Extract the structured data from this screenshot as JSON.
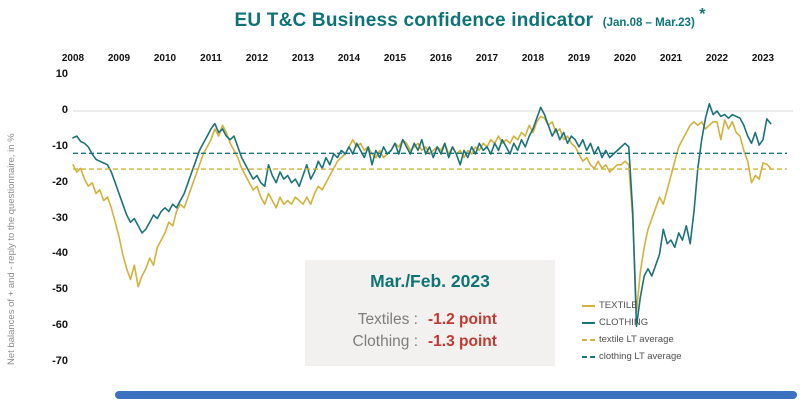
{
  "title": {
    "main": "EU T&C Business confidence indicator",
    "range": "(Jan.08 – Mar.23)",
    "asterisk": "*"
  },
  "y_axis": {
    "title": "Net balances of + and - reply to the questionnaire, in %"
  },
  "annotation": {
    "title": "Mar./Feb. 2023",
    "rows": [
      {
        "label": "Textiles :",
        "value": "-1.2  point"
      },
      {
        "label": "Clothing :",
        "value": "-1.3  point"
      }
    ]
  },
  "legend": [
    {
      "label": "TEXTILE",
      "style": "solid",
      "color": "#d2b13c"
    },
    {
      "label": "CLOTHING",
      "style": "solid",
      "color": "#1b727b"
    },
    {
      "label": "textile LT average",
      "style": "dashed",
      "color": "#d2b13c"
    },
    {
      "label": "clothing LT average",
      "style": "dashed",
      "color": "#1b727b"
    }
  ],
  "colors": {
    "title_teal": "#0d7377",
    "textile": "#d2b13c",
    "clothing": "#1b727b",
    "annotation_red": "#c0392f",
    "annotation_gray": "#7d7d7d",
    "zero_line": "#d8d8d8",
    "scrollbar_blue": "#3c70c0"
  },
  "chart_data": {
    "type": "line",
    "title": "EU T&C Business confidence indicator (Jan.08 – Mar.23)",
    "ylabel": "Net balances of + and - reply to the questionnaire, in %",
    "x_labels": [
      "2008",
      "2009",
      "2010",
      "2011",
      "2012",
      "2013",
      "2014",
      "2015",
      "2016",
      "2017",
      "2018",
      "2019",
      "2020",
      "2021",
      "2022",
      "2023"
    ],
    "y_ticks": [
      10,
      0,
      -10,
      -20,
      -30,
      -40,
      -50,
      -60,
      -70
    ],
    "ylim": [
      -70,
      10
    ],
    "x_start_year": 2008,
    "frequency": "monthly",
    "grid": false,
    "legend_position": "right-bottom",
    "series": [
      {
        "name": "TEXTILE",
        "color": "#d2b13c",
        "style": "solid",
        "values": [
          -15,
          -17,
          -16,
          -19,
          -21,
          -20,
          -23,
          -22,
          -25,
          -24,
          -27,
          -31,
          -35,
          -40,
          -44,
          -47,
          -43,
          -49,
          -46,
          -44,
          -41,
          -43,
          -38,
          -36,
          -34,
          -31,
          -32,
          -28,
          -26,
          -27,
          -24,
          -21,
          -18,
          -15,
          -12,
          -10,
          -8,
          -5,
          -7,
          -4,
          -6,
          -9,
          -11,
          -13,
          -16,
          -18,
          -20,
          -22,
          -21,
          -24,
          -26,
          -23,
          -25,
          -27,
          -24,
          -26,
          -25,
          -26,
          -24,
          -25,
          -26,
          -24,
          -26,
          -23,
          -21,
          -22,
          -20,
          -18,
          -16,
          -14,
          -13,
          -12,
          -10,
          -8,
          -10,
          -9,
          -11,
          -10,
          -12,
          -13,
          -11,
          -13,
          -12,
          -11,
          -9,
          -10,
          -8,
          -9,
          -11,
          -10,
          -9,
          -11,
          -10,
          -12,
          -11,
          -10,
          -11,
          -9,
          -12,
          -10,
          -12,
          -11,
          -13,
          -11,
          -12,
          -10,
          -11,
          -9,
          -10,
          -8,
          -9,
          -7,
          -9,
          -8,
          -9,
          -7,
          -8,
          -6,
          -7,
          -4,
          -6,
          -3,
          -1.5,
          -2,
          -4,
          -3,
          -6,
          -5,
          -8,
          -7,
          -9,
          -10,
          -12,
          -14,
          -13,
          -15,
          -16,
          -14,
          -16,
          -15,
          -17,
          -16,
          -15,
          -15,
          -14,
          -15,
          -30,
          -56,
          -45,
          -38,
          -33,
          -30,
          -27,
          -24,
          -26,
          -22,
          -18,
          -14,
          -10,
          -8,
          -6,
          -4,
          -3,
          -4,
          -3,
          -5,
          -4,
          -3,
          -3,
          -8,
          -2.5,
          -5,
          -3,
          -6,
          -7,
          -11,
          -14,
          -20,
          -18,
          -19,
          -14.5,
          -14.8,
          -16
        ]
      },
      {
        "name": "CLOTHING",
        "color": "#1b727b",
        "style": "solid",
        "values": [
          -7.5,
          -7,
          -8.5,
          -9,
          -10,
          -12,
          -13.5,
          -14,
          -14.5,
          -15,
          -17,
          -20,
          -23,
          -26,
          -29,
          -31,
          -30,
          -32,
          -34,
          -33,
          -31,
          -29,
          -30,
          -28,
          -27,
          -28,
          -26,
          -27,
          -25,
          -23,
          -20,
          -17,
          -14,
          -11,
          -9,
          -7,
          -5,
          -3.5,
          -6,
          -5,
          -7,
          -8,
          -7,
          -10,
          -13,
          -15,
          -17,
          -19,
          -18,
          -20,
          -21,
          -15,
          -18,
          -20,
          -17,
          -19,
          -18,
          -20,
          -19,
          -21,
          -18,
          -15,
          -19,
          -17,
          -14,
          -16,
          -13,
          -15,
          -12,
          -13,
          -11,
          -12,
          -10,
          -12,
          -9,
          -11,
          -13,
          -10,
          -15,
          -11,
          -13,
          -10,
          -12,
          -11,
          -9,
          -12,
          -8,
          -10,
          -12,
          -9,
          -11,
          -8,
          -12,
          -10,
          -13,
          -10,
          -12,
          -9,
          -13,
          -10,
          -12,
          -15,
          -11,
          -13,
          -10,
          -12,
          -9,
          -11,
          -10,
          -12,
          -9,
          -11,
          -8,
          -10,
          -12,
          -9,
          -11,
          -8,
          -10,
          -7,
          -5,
          -2,
          1,
          -1,
          -4,
          -7,
          -5,
          -8,
          -6,
          -9,
          -7,
          -8,
          -10,
          -8,
          -11,
          -9,
          -12,
          -10,
          -13,
          -11,
          -13,
          -12,
          -11,
          -10,
          -9,
          -10,
          -28,
          -60,
          -52,
          -46,
          -44,
          -46,
          -43,
          -40,
          -33,
          -37,
          -36,
          -38,
          -34,
          -36,
          -32,
          -37,
          -28,
          -16,
          -8,
          -2,
          2,
          -1,
          0,
          -1.5,
          -1,
          -2,
          -1,
          -1.5,
          -2,
          -4,
          -7,
          -9,
          -6,
          -9.5,
          -8,
          -2.2,
          -3.5
        ]
      },
      {
        "name": "textile LT average",
        "color": "#d2b13c",
        "style": "dashed",
        "constant_value": -16.2
      },
      {
        "name": "clothing LT average",
        "color": "#1b727b",
        "style": "dashed",
        "constant_value": -11.8
      }
    ]
  }
}
